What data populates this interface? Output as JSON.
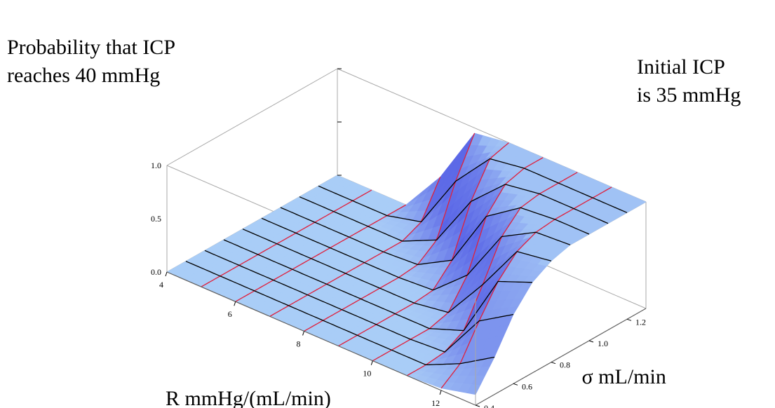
{
  "annotations": {
    "left_line1": "Probability that ICP",
    "left_line2": "reaches 40 mmHg",
    "right_line1": "Initial ICP",
    "right_line2": "is 35 mmHg"
  },
  "colors": {
    "surface_low": "#a9cdf7",
    "surface_high": "#3c3fe0",
    "mesh_r": "#e0203c",
    "mesh_sigma": "#000000",
    "box": "#a8a8a8"
  },
  "chart_data": {
    "type": "surface3d",
    "title": "",
    "xlabel": "R mmHg/(mL/min)",
    "ylabel": "σ mL/min",
    "zlabel": "",
    "xlim": [
      4,
      13
    ],
    "ylim": [
      0.4,
      1.3
    ],
    "zlim": [
      0,
      1
    ],
    "x_ticks": [
      "4",
      "6",
      "8",
      "10",
      "12"
    ],
    "y_ticks": [
      "0.4",
      "0.6",
      "0.8",
      "1.0",
      "1.2"
    ],
    "z_ticks": [
      "0.0",
      "0.5",
      "1.0"
    ],
    "x_tick_values": [
      4,
      6,
      8,
      10,
      12
    ],
    "y_tick_values": [
      0.4,
      0.6,
      0.8,
      1.0,
      1.2
    ],
    "z_tick_values": [
      0,
      0.5,
      1.0
    ],
    "x": [
      4,
      5,
      6,
      7,
      8,
      9,
      10,
      11,
      12,
      13
    ],
    "y": [
      0.4,
      0.5,
      0.6,
      0.7,
      0.8,
      0.9,
      1.0,
      1.1,
      1.2,
      1.3
    ],
    "z": [
      [
        0.0,
        0.0,
        0.0,
        0.0,
        0.0,
        0.0,
        0.0,
        0.0,
        0.02,
        0.1
      ],
      [
        0.0,
        0.0,
        0.0,
        0.0,
        0.0,
        0.0,
        0.0,
        0.0,
        0.15,
        0.35
      ],
      [
        0.0,
        0.0,
        0.0,
        0.0,
        0.0,
        0.0,
        0.0,
        0.02,
        0.45,
        0.65
      ],
      [
        0.0,
        0.0,
        0.0,
        0.0,
        0.0,
        0.0,
        0.0,
        0.12,
        0.72,
        0.85
      ],
      [
        0.0,
        0.0,
        0.0,
        0.0,
        0.0,
        0.0,
        0.05,
        0.45,
        0.9,
        0.95
      ],
      [
        0.0,
        0.0,
        0.0,
        0.0,
        0.0,
        0.02,
        0.3,
        0.8,
        0.98,
        1.0
      ],
      [
        0.0,
        0.0,
        0.0,
        0.0,
        0.02,
        0.2,
        0.75,
        0.97,
        1.0,
        1.0
      ],
      [
        0.0,
        0.0,
        0.0,
        0.0,
        0.15,
        0.65,
        0.95,
        1.0,
        1.0,
        1.0
      ],
      [
        0.0,
        0.0,
        0.0,
        0.08,
        0.6,
        0.95,
        1.0,
        1.0,
        1.0,
        1.0
      ],
      [
        0.0,
        0.0,
        0.0,
        0.4,
        0.95,
        1.0,
        1.0,
        1.0,
        1.0,
        1.0
      ]
    ],
    "grid": false
  }
}
